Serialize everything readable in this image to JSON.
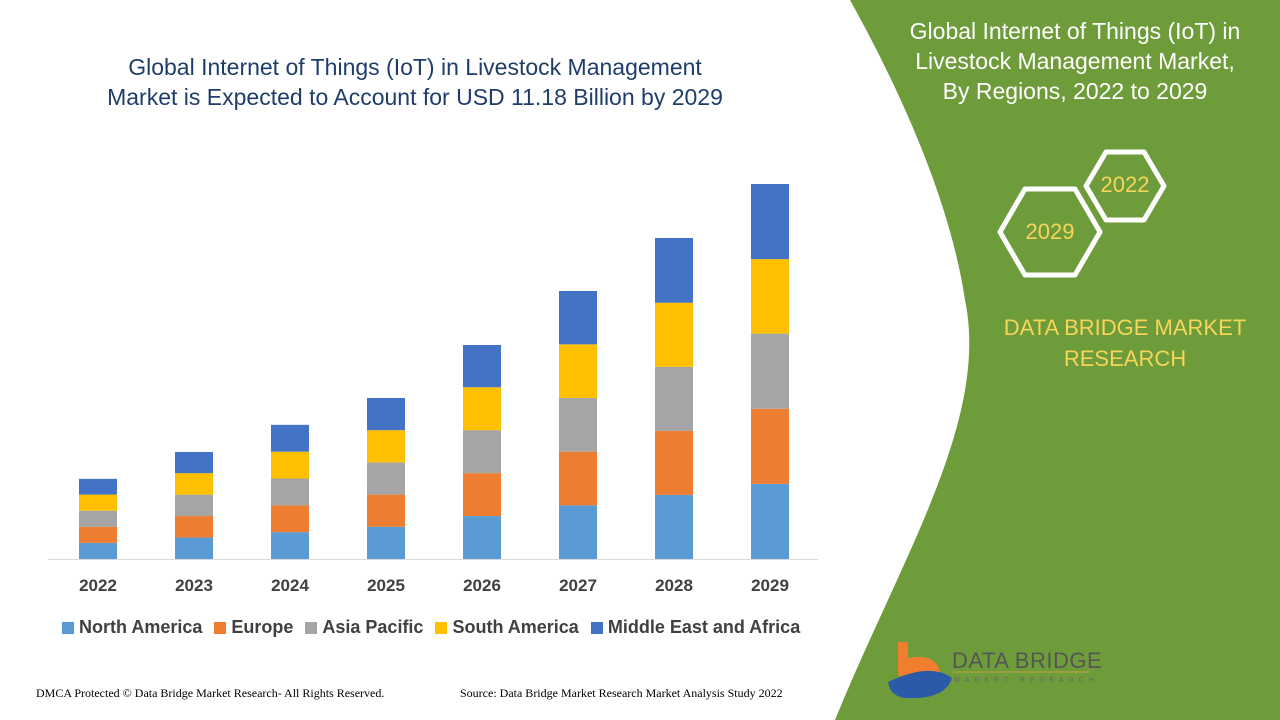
{
  "header": {
    "title_line1": "Global Internet of Things (IoT) in Livestock Management",
    "title_line2": "Market is Expected to Account for USD 11.18 Billion by 2029"
  },
  "side_panel": {
    "title_line1": "Global Internet of Things (IoT) in",
    "title_line2": "Livestock Management Market,",
    "title_line3": "By Regions, 2022 to 2029",
    "hex_start": "2022",
    "hex_end": "2029",
    "brand_line1": "DATA BRIDGE MARKET",
    "brand_line2": "RESEARCH",
    "logo_text": "DATA BRIDGE",
    "logo_sub": "MARKET RESEARCH",
    "panel_color": "#6f9c3a"
  },
  "footer": {
    "left": "DMCA Protected © Data Bridge Market Research- All Rights Reserved.",
    "right": "Source: Data Bridge Market Research Market Analysis Study 2022"
  },
  "chart_data": {
    "type": "bar",
    "stacked": true,
    "categories": [
      "2022",
      "2023",
      "2024",
      "2025",
      "2026",
      "2027",
      "2028",
      "2029"
    ],
    "series": [
      {
        "name": "North America",
        "color": "#5b9bd5",
        "values": [
          0.48,
          0.64,
          0.8,
          0.96,
          1.28,
          1.6,
          1.91,
          2.24
        ]
      },
      {
        "name": "Europe",
        "color": "#ed7d31",
        "values": [
          0.48,
          0.64,
          0.8,
          0.96,
          1.28,
          1.6,
          1.91,
          2.24
        ]
      },
      {
        "name": "Asia Pacific",
        "color": "#a5a5a5",
        "values": [
          0.48,
          0.64,
          0.8,
          0.96,
          1.28,
          1.6,
          1.91,
          2.24
        ]
      },
      {
        "name": "South America",
        "color": "#ffc000",
        "values": [
          0.48,
          0.64,
          0.8,
          0.96,
          1.28,
          1.6,
          1.91,
          2.22
        ]
      },
      {
        "name": "Middle East and Africa",
        "color": "#4472c4",
        "values": [
          0.47,
          0.63,
          0.8,
          0.96,
          1.26,
          1.59,
          1.93,
          2.24
        ]
      }
    ],
    "ylim": [
      0,
      11.18
    ],
    "grid": false,
    "legend_position": "bottom"
  }
}
